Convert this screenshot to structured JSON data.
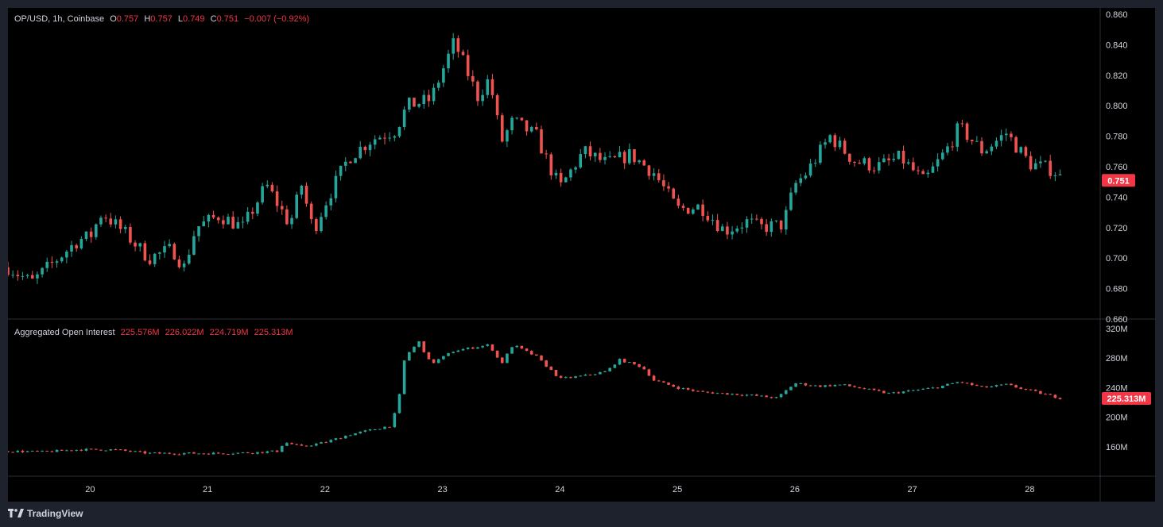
{
  "header": {
    "symbol": "OP/USD, 1h, Coinbase",
    "open_label": "O",
    "open": "0.757",
    "high_label": "H",
    "high": "0.757",
    "low_label": "L",
    "low": "0.749",
    "close_label": "C",
    "close": "0.751",
    "change": "−0.007 (−0.92%)"
  },
  "indicator": {
    "name": "Aggregated Open Interest",
    "open": "225.576M",
    "high": "226.022M",
    "low": "224.719M",
    "close": "225.313M"
  },
  "footer": {
    "brand": "TradingView"
  },
  "colors": {
    "up": "#26a69a",
    "down": "#ef5350",
    "grid": "#2a2e39",
    "axis_text": "#d1d4dc",
    "price_tag": "#f23645"
  },
  "chart_data": [
    {
      "type": "candlestick",
      "series_label": "OP/USD",
      "ylim": [
        0.66,
        0.86
      ],
      "yticks": [
        "0.860",
        "0.840",
        "0.820",
        "0.800",
        "0.780",
        "0.760",
        "0.740",
        "0.720",
        "0.700",
        "0.680",
        "0.660"
      ],
      "last_price": 0.751,
      "last_price_label": "0.751",
      "x_range": [
        19.3,
        28.6
      ],
      "x_ticks": [
        "20",
        "21",
        "22",
        "23",
        "24",
        "25",
        "26",
        "27",
        "28"
      ],
      "close_path": [
        [
          19.3,
          0.694
        ],
        [
          19.5,
          0.684
        ],
        [
          19.7,
          0.698
        ],
        [
          19.9,
          0.712
        ],
        [
          20.0,
          0.714
        ],
        [
          20.1,
          0.73
        ],
        [
          20.3,
          0.716
        ],
        [
          20.5,
          0.7
        ],
        [
          20.7,
          0.706
        ],
        [
          20.8,
          0.694
        ],
        [
          20.9,
          0.72
        ],
        [
          21.1,
          0.728
        ],
        [
          21.3,
          0.72
        ],
        [
          21.5,
          0.748
        ],
        [
          21.7,
          0.722
        ],
        [
          21.8,
          0.748
        ],
        [
          21.9,
          0.718
        ],
        [
          22.0,
          0.736
        ],
        [
          22.2,
          0.766
        ],
        [
          22.4,
          0.778
        ],
        [
          22.6,
          0.784
        ],
        [
          22.7,
          0.8
        ],
        [
          22.9,
          0.804
        ],
        [
          23.1,
          0.842
        ],
        [
          23.3,
          0.806
        ],
        [
          23.4,
          0.818
        ],
        [
          23.5,
          0.776
        ],
        [
          23.6,
          0.79
        ],
        [
          23.8,
          0.78
        ],
        [
          23.9,
          0.762
        ],
        [
          24.0,
          0.746
        ],
        [
          24.2,
          0.77
        ],
        [
          24.4,
          0.762
        ],
        [
          24.6,
          0.768
        ],
        [
          24.8,
          0.756
        ],
        [
          25.0,
          0.732
        ],
        [
          25.2,
          0.734
        ],
        [
          25.4,
          0.718
        ],
        [
          25.6,
          0.724
        ],
        [
          25.7,
          0.72
        ],
        [
          25.9,
          0.722
        ],
        [
          26.0,
          0.748
        ],
        [
          26.1,
          0.756
        ],
        [
          26.3,
          0.78
        ],
        [
          26.5,
          0.764
        ],
        [
          26.7,
          0.76
        ],
        [
          26.9,
          0.766
        ],
        [
          27.1,
          0.75
        ],
        [
          27.3,
          0.772
        ],
        [
          27.4,
          0.786
        ],
        [
          27.5,
          0.778
        ],
        [
          27.6,
          0.77
        ],
        [
          27.8,
          0.782
        ],
        [
          28.0,
          0.762
        ],
        [
          28.2,
          0.758
        ],
        [
          28.28,
          0.751
        ]
      ]
    },
    {
      "type": "candlestick",
      "series_label": "Aggregated Open Interest",
      "ylim": [
        120,
        320
      ],
      "unit": "M",
      "yticks": [
        "320M",
        "280M",
        "240M",
        "200M",
        "160M"
      ],
      "ytick_values": [
        320,
        280,
        240,
        200,
        160
      ],
      "last_value": 225.313,
      "last_value_label": "225.313M",
      "close_path": [
        [
          19.3,
          154
        ],
        [
          19.6,
          153
        ],
        [
          19.9,
          156
        ],
        [
          20.2,
          156
        ],
        [
          20.5,
          151
        ],
        [
          20.8,
          151
        ],
        [
          21.1,
          151
        ],
        [
          21.4,
          152
        ],
        [
          21.6,
          154
        ],
        [
          21.65,
          166
        ],
        [
          21.8,
          160
        ],
        [
          22.0,
          166
        ],
        [
          22.2,
          176
        ],
        [
          22.4,
          183
        ],
        [
          22.55,
          188
        ],
        [
          22.62,
          215
        ],
        [
          22.68,
          282
        ],
        [
          22.8,
          302
        ],
        [
          22.9,
          272
        ],
        [
          23.1,
          290
        ],
        [
          23.4,
          298
        ],
        [
          23.5,
          272
        ],
        [
          23.6,
          298
        ],
        [
          23.8,
          282
        ],
        [
          24.0,
          252
        ],
        [
          24.2,
          256
        ],
        [
          24.4,
          262
        ],
        [
          24.5,
          278
        ],
        [
          24.7,
          268
        ],
        [
          24.8,
          250
        ],
        [
          25.0,
          240
        ],
        [
          25.2,
          234
        ],
        [
          25.4,
          232
        ],
        [
          25.6,
          230
        ],
        [
          25.85,
          226
        ],
        [
          26.0,
          246
        ],
        [
          26.2,
          242
        ],
        [
          26.4,
          244
        ],
        [
          26.6,
          238
        ],
        [
          26.8,
          232
        ],
        [
          27.0,
          236
        ],
        [
          27.2,
          240
        ],
        [
          27.4,
          248
        ],
        [
          27.6,
          240
        ],
        [
          27.8,
          244
        ],
        [
          28.0,
          236
        ],
        [
          28.28,
          225
        ]
      ]
    }
  ]
}
